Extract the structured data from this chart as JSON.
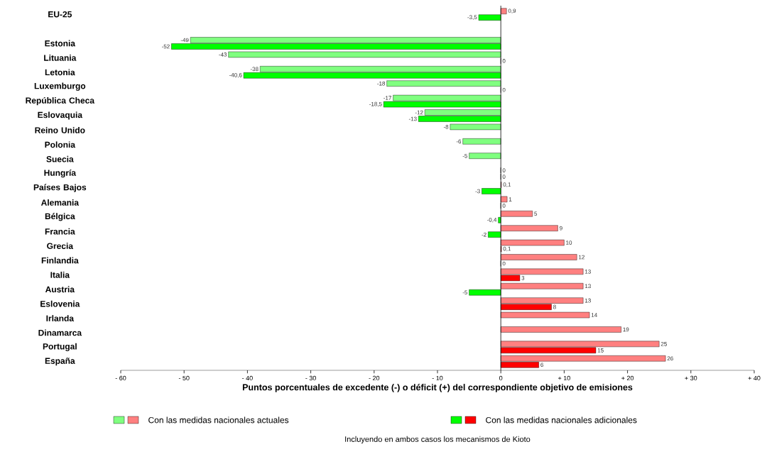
{
  "chart_data": {
    "type": "bar",
    "orientation": "horizontal",
    "xlabel": "Puntos porcentuales de excedente (-) o déficit (+) del correspondiente objetivo de emisiones",
    "categories": [
      "EU-25",
      null,
      "Estonia",
      "Lituania",
      "Letonia",
      "Luxemburgo",
      "República Checa",
      "Eslovaquia",
      "Reino Unido",
      "Polonia",
      "Suecia",
      "Hungría",
      "Países Bajos",
      "Alemania",
      "Bélgica",
      "Francia",
      "Grecia",
      "Finlandia",
      "Italia",
      "Austria",
      "Eslovenia",
      "Irlanda",
      "Dinamarca",
      "Portugal",
      "España"
    ],
    "series": [
      {
        "name": "Con las medidas nacionales actuales",
        "values": [
          0.9,
          null,
          -49,
          -43,
          -38,
          -18,
          -17,
          -12,
          -8,
          -6,
          -5,
          0,
          0.1,
          1,
          5,
          9,
          10,
          12,
          13,
          13,
          13,
          14,
          19,
          25,
          26
        ],
        "value_labels": [
          "0,9",
          null,
          "-49",
          "-43",
          "-38",
          "-18",
          "-17",
          "-12",
          "-8",
          "-6",
          "-5",
          "0",
          "0,1",
          "1",
          "5",
          "9",
          "10",
          "12",
          "13",
          "13",
          "13",
          "14",
          "19",
          "25",
          "26"
        ],
        "colors": [
          "#ff8080",
          null,
          "#80ff80",
          "#80ff80",
          "#80ff80",
          "#80ff80",
          "#80ff80",
          "#80ff80",
          "#80ff80",
          "#80ff80",
          "#80ff80",
          "#80ff80",
          "#ff8080",
          "#ff8080",
          "#ff8080",
          "#ff8080",
          "#ff8080",
          "#ff8080",
          "#ff8080",
          "#ff8080",
          "#ff8080",
          "#ff8080",
          "#ff8080",
          "#ff8080",
          "#ff8080"
        ]
      },
      {
        "name": "Con las medidas nacionales adicionales",
        "values": [
          -3.5,
          null,
          -52,
          0,
          -40.6,
          0,
          -18.5,
          -13,
          null,
          null,
          null,
          0,
          -3,
          0,
          -0.4,
          -2,
          0.1,
          0,
          3,
          -5,
          8,
          null,
          null,
          15,
          6
        ],
        "value_labels": [
          "-3,5",
          null,
          "-52",
          "0",
          "-40,6",
          "0",
          "-18,5",
          "-13",
          null,
          null,
          null,
          "0",
          "-3",
          "0",
          "-0,4",
          "-2",
          "0,1",
          "0",
          "3",
          "-5",
          "8",
          null,
          null,
          "15",
          "6"
        ],
        "colors": [
          "#00ff00",
          null,
          "#00ff00",
          "#00ff00",
          "#00ff00",
          "#00ff00",
          "#00ff00",
          "#00ff00",
          null,
          null,
          null,
          "#00ff00",
          "#00ff00",
          "#ff0000",
          "#00ff00",
          "#00ff00",
          "#ff0000",
          "#ff0000",
          "#ff0000",
          "#00ff00",
          "#ff0000",
          null,
          null,
          "#ff0000",
          "#ff0000"
        ]
      }
    ],
    "xlim": [
      -60,
      40
    ],
    "xticks": [
      {
        "value": -60,
        "label": "- 60"
      },
      {
        "value": -50,
        "label": "- 50"
      },
      {
        "value": -40,
        "label": "- 40"
      },
      {
        "value": -30,
        "label": "- 30"
      },
      {
        "value": -20,
        "label": "- 20"
      },
      {
        "value": -10,
        "label": "- 10"
      },
      0,
      {
        "value": 10,
        "label": "+ 10"
      },
      {
        "value": 20,
        "label": "+ 20"
      },
      {
        "value": 30,
        "label": "+ 30"
      },
      {
        "value": 40,
        "label": "+ 40"
      }
    ],
    "legend": "bottom",
    "annotations": [
      "Incluyendo en ambos casos los mecanismos de Kioto"
    ]
  }
}
